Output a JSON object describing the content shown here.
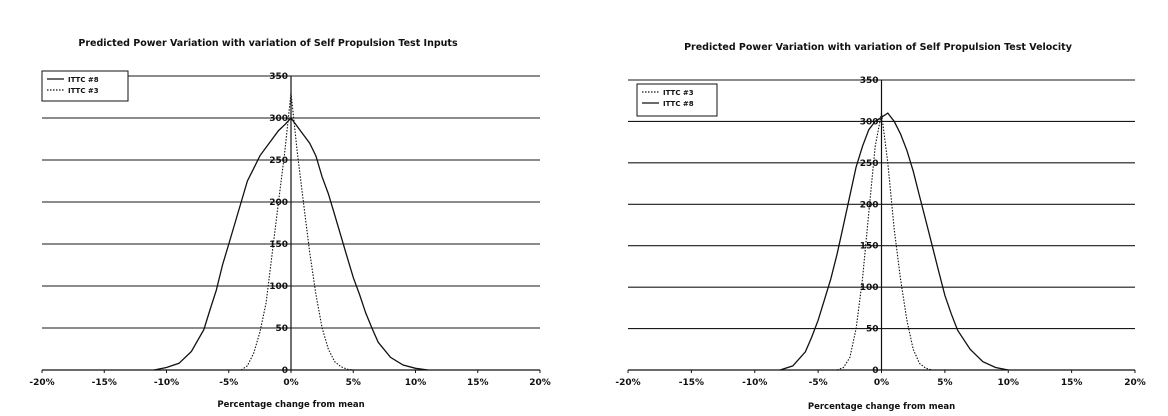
{
  "chart_data": [
    {
      "type": "line",
      "title": "Predicted Power Variation with variation of Self Propulsion Test Inputs",
      "xlabel": "Percentage change from mean",
      "ylabel": "",
      "x_tick_labels": [
        "-20%",
        "-15%",
        "-10%",
        "-5%",
        "0%",
        "5%",
        "10%",
        "15%",
        "20%"
      ],
      "y_tick_labels": [
        "0",
        "50",
        "100",
        "150",
        "200",
        "250",
        "300",
        "350"
      ],
      "xlim": [
        -20,
        20
      ],
      "ylim": [
        0,
        350
      ],
      "grid": "horizontal",
      "legend_position": "top-left",
      "series": [
        {
          "name": "ITTC #8",
          "style": "solid",
          "x": [
            -11,
            -10,
            -9,
            -8,
            -7,
            -6.5,
            -6,
            -5.5,
            -5,
            -4.5,
            -4,
            -3.5,
            -3,
            -2.5,
            -2,
            -1.5,
            -1,
            -0.5,
            0,
            0.5,
            1,
            1.5,
            2,
            2.5,
            3,
            3.5,
            4,
            4.5,
            5,
            5.5,
            6,
            6.5,
            7,
            8,
            9,
            10,
            11
          ],
          "values": [
            0,
            3,
            8,
            22,
            48,
            72,
            95,
            125,
            150,
            175,
            200,
            225,
            240,
            255,
            265,
            275,
            285,
            292,
            300,
            290,
            280,
            270,
            255,
            230,
            210,
            185,
            160,
            135,
            110,
            90,
            68,
            50,
            33,
            15,
            6,
            2,
            0
          ]
        },
        {
          "name": "ITTC #3",
          "style": "dotted",
          "x": [
            -4,
            -3.5,
            -3,
            -2.5,
            -2,
            -1.5,
            -1,
            -0.5,
            0,
            0.5,
            1,
            1.5,
            2,
            2.5,
            3,
            3.5,
            4,
            4.5,
            5
          ],
          "values": [
            0,
            5,
            20,
            45,
            80,
            140,
            200,
            260,
            330,
            260,
            200,
            140,
            90,
            50,
            25,
            10,
            4,
            1,
            0
          ]
        }
      ]
    },
    {
      "type": "line",
      "title": "Predicted Power Variation with variation of Self Propulsion Test Velocity",
      "xlabel": "Percentage change from mean",
      "ylabel": "",
      "x_tick_labels": [
        "-20%",
        "-15%",
        "-10%",
        "-5%",
        "0%",
        "5%",
        "10%",
        "15%",
        "20%"
      ],
      "y_tick_labels": [
        "0",
        "50",
        "100",
        "150",
        "200",
        "250",
        "300",
        "350"
      ],
      "xlim": [
        -20,
        20
      ],
      "ylim": [
        0,
        350
      ],
      "grid": "horizontal",
      "legend_position": "top-left",
      "series": [
        {
          "name": "ITTC #3",
          "style": "dotted",
          "x": [
            -3.5,
            -3,
            -2.5,
            -2,
            -1.5,
            -1,
            -0.5,
            0,
            0.5,
            1,
            1.5,
            2,
            2.5,
            3,
            3.5,
            4
          ],
          "values": [
            0,
            3,
            15,
            50,
            110,
            190,
            270,
            310,
            250,
            170,
            110,
            60,
            25,
            8,
            2,
            0
          ]
        },
        {
          "name": "ITTC #8",
          "style": "solid",
          "x": [
            -8,
            -7,
            -6,
            -5.5,
            -5,
            -4.5,
            -4,
            -3.5,
            -3,
            -2.5,
            -2,
            -1.5,
            -1,
            -0.5,
            0,
            0.5,
            1,
            1.5,
            2,
            2.5,
            3,
            3.5,
            4,
            4.5,
            5,
            5.5,
            6,
            7,
            8,
            9,
            10
          ],
          "values": [
            0,
            5,
            22,
            40,
            60,
            85,
            110,
            140,
            175,
            210,
            245,
            270,
            290,
            300,
            305,
            310,
            300,
            285,
            265,
            240,
            210,
            180,
            150,
            120,
            90,
            68,
            48,
            25,
            10,
            3,
            0
          ]
        }
      ]
    }
  ]
}
